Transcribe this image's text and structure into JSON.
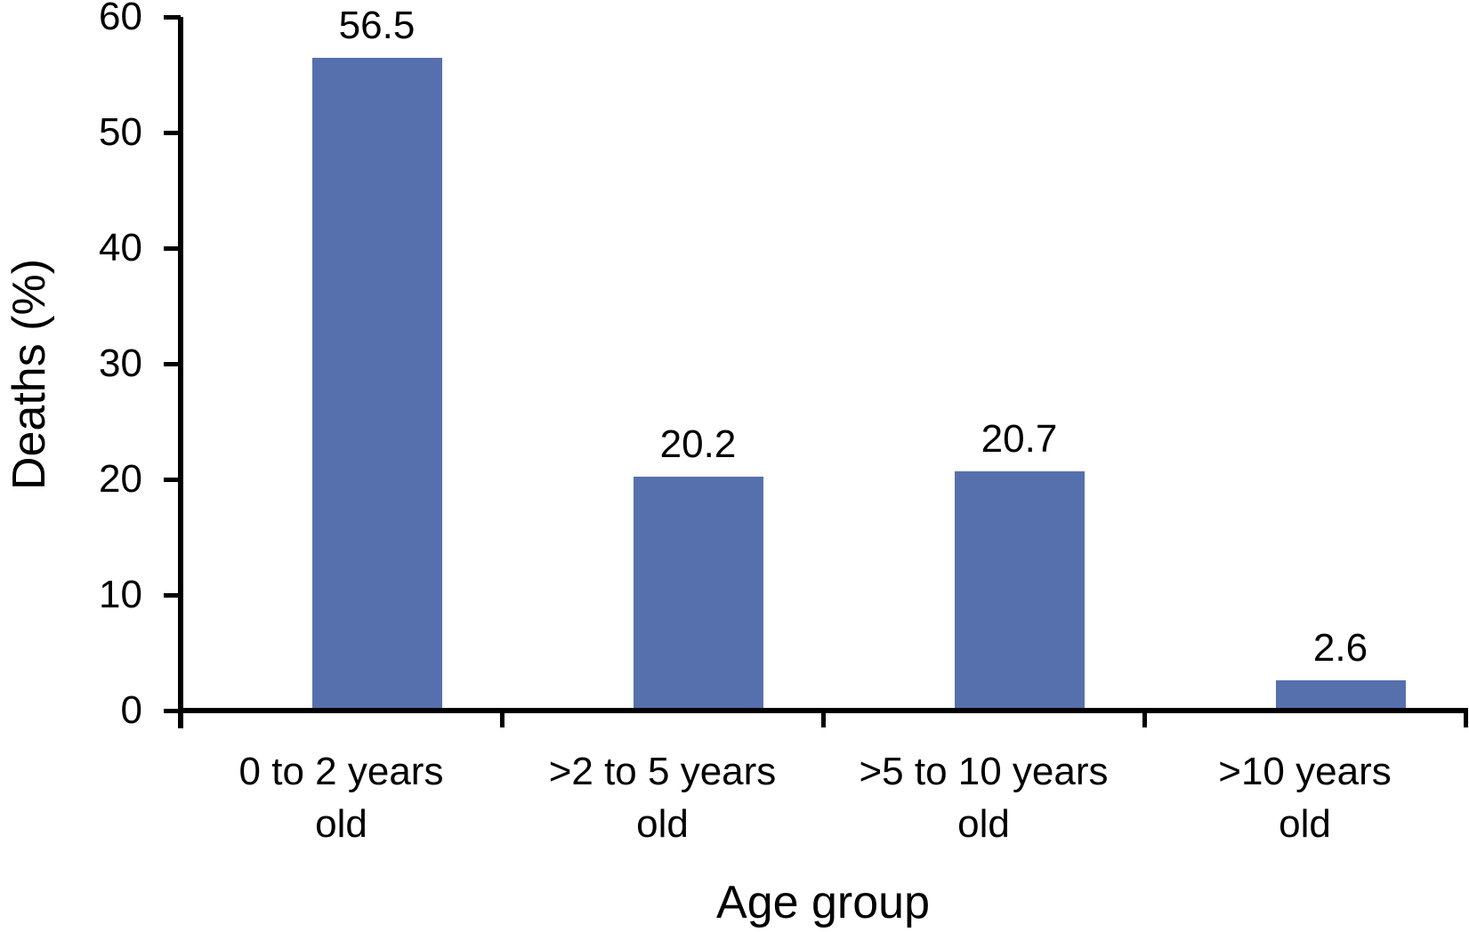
{
  "figure": {
    "background_color": "#ffffff",
    "axis_color": "#000000",
    "text_color": "#000000"
  },
  "chart_data": {
    "type": "bar",
    "title": "",
    "xlabel": "Age group",
    "ylabel": "Deaths (%)",
    "categories": [
      "0 to 2 years old",
      ">2 to 5 years old",
      ">5 to 10 years old",
      ">10 years old"
    ],
    "category_label_lines": [
      [
        "0 to 2 years",
        "old"
      ],
      [
        ">2 to 5 years",
        "old"
      ],
      [
        ">5 to 10 years",
        "old"
      ],
      [
        ">10 years",
        "old"
      ]
    ],
    "values": [
      56.5,
      20.2,
      20.7,
      2.6
    ],
    "value_labels": [
      "56.5",
      "20.2",
      "20.7",
      "2.6"
    ],
    "ylim": [
      0,
      60
    ],
    "yticks": [
      0,
      10,
      20,
      30,
      40,
      50,
      60
    ],
    "ytick_labels": [
      "0",
      "10",
      "20",
      "30",
      "40",
      "50",
      "60"
    ],
    "grid": "off",
    "legend": "none",
    "bar_color": "#5570AD"
  }
}
